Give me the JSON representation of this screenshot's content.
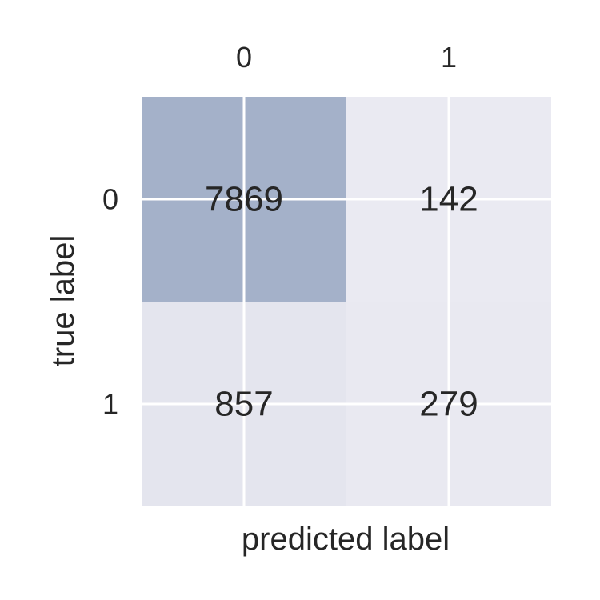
{
  "chart_data": {
    "type": "heatmap",
    "title": "",
    "xlabel": "predicted label",
    "ylabel": "true label",
    "x_categories": [
      "0",
      "1"
    ],
    "y_categories": [
      "0",
      "1"
    ],
    "values": [
      [
        7869,
        142
      ],
      [
        857,
        279
      ]
    ],
    "x_tick_position": "top",
    "grid": true,
    "colors": {
      "background": "#eaeaf2",
      "max_cell": "#a4b1c9",
      "grid_line": "#ffffff",
      "text": "#262626"
    }
  }
}
